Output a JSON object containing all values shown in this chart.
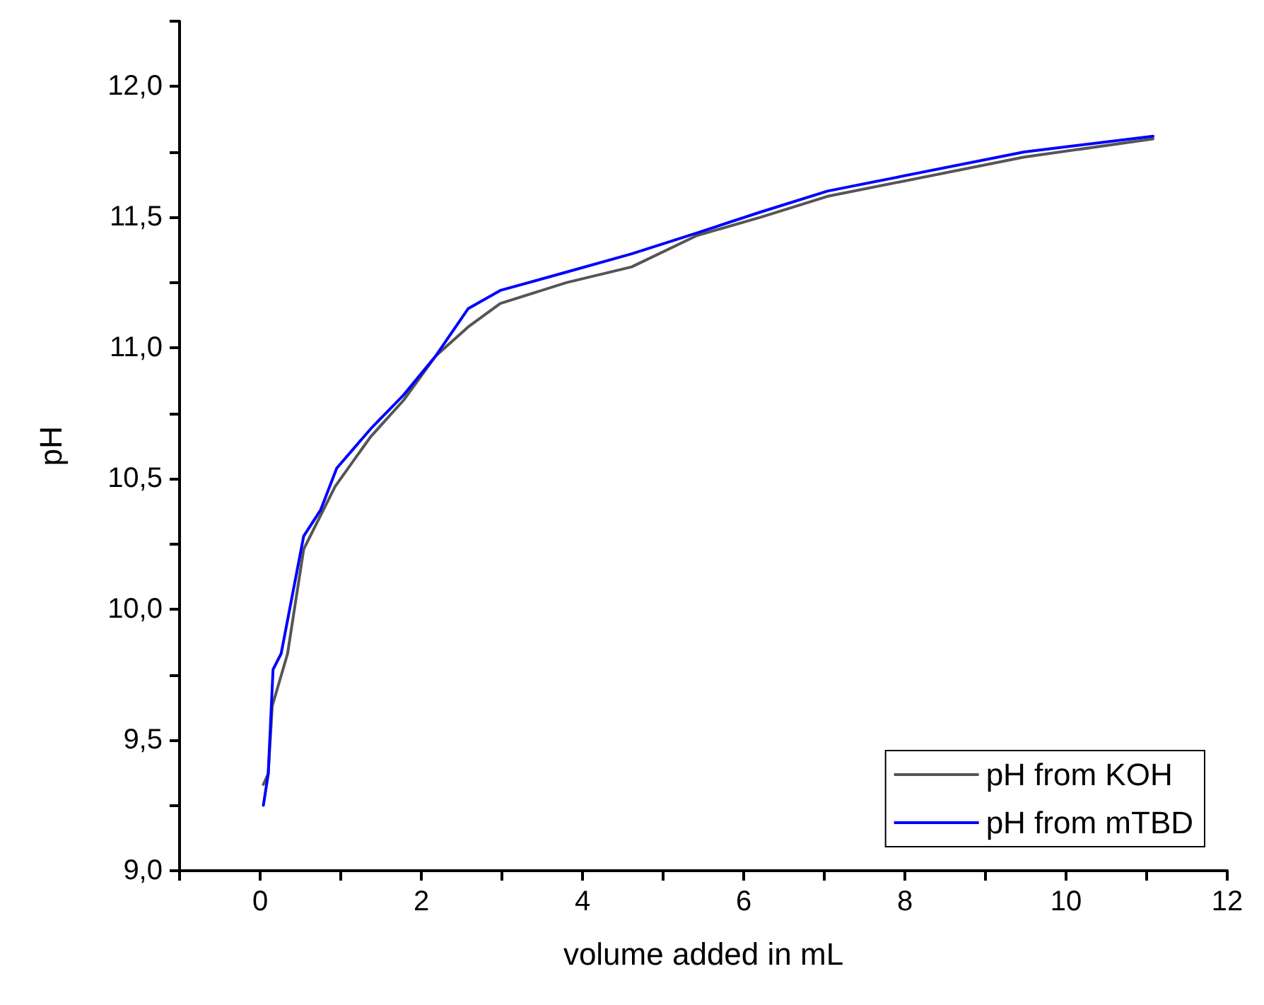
{
  "chart_data": {
    "type": "line",
    "xlabel": "volume added in mL",
    "ylabel": "pH",
    "xlim": [
      -1,
      12
    ],
    "xticks": [
      {
        "value": -1,
        "label": null
      },
      0,
      {
        "value": 1,
        "label": null
      },
      2,
      {
        "value": 3,
        "label": null
      },
      4,
      {
        "value": 5,
        "label": null
      },
      6,
      {
        "value": 7,
        "label": null
      },
      8,
      {
        "value": 9,
        "label": null
      },
      10,
      {
        "value": 11,
        "label": null
      },
      12
    ],
    "ylim": [
      9,
      12.25
    ],
    "yticks": [
      {
        "value": 9,
        "label": "9,0"
      },
      {
        "value": 9.25,
        "label": null
      },
      {
        "value": 9.5,
        "label": "9,5"
      },
      {
        "value": 9.75,
        "label": null
      },
      {
        "value": 10,
        "label": "10,0"
      },
      {
        "value": 10.25,
        "label": null
      },
      {
        "value": 10.5,
        "label": "10,5"
      },
      {
        "value": 10.75,
        "label": null
      },
      {
        "value": 11,
        "label": "11,0"
      },
      {
        "value": 11.25,
        "label": null
      },
      {
        "value": 11.5,
        "label": "11,5"
      },
      {
        "value": 11.75,
        "label": null
      },
      {
        "value": 12,
        "label": "12,0"
      },
      {
        "value": 12.25,
        "label": null
      }
    ],
    "grid": false,
    "legend": "bottom right",
    "marker": "none",
    "line_style": "solid",
    "series": [
      {
        "name": "pH from KOH",
        "color": "#555555",
        "x": [
          0.04,
          0.1,
          0.15,
          0.34,
          0.54,
          0.93,
          1.37,
          1.78,
          2.18,
          2.58,
          2.98,
          3.8,
          4.61,
          5.42,
          6.21,
          7.04,
          9.48,
          11.08
        ],
        "values": [
          9.33,
          9.37,
          9.63,
          9.83,
          10.23,
          10.47,
          10.66,
          10.8,
          10.97,
          11.08,
          11.17,
          11.25,
          11.31,
          11.43,
          11.5,
          11.58,
          11.73,
          11.8
        ]
      },
      {
        "name": "pH from mTBD",
        "color": "#0000ff",
        "x": [
          0.04,
          0.1,
          0.16,
          0.26,
          0.54,
          0.75,
          0.95,
          1.37,
          1.78,
          2.18,
          2.58,
          2.98,
          3.8,
          4.61,
          5.42,
          6.21,
          7.04,
          9.48,
          11.08
        ],
        "values": [
          9.25,
          9.37,
          9.77,
          9.83,
          10.28,
          10.38,
          10.54,
          10.69,
          10.82,
          10.97,
          11.15,
          11.22,
          11.29,
          11.36,
          11.44,
          11.52,
          11.6,
          11.75,
          11.81
        ]
      }
    ]
  }
}
